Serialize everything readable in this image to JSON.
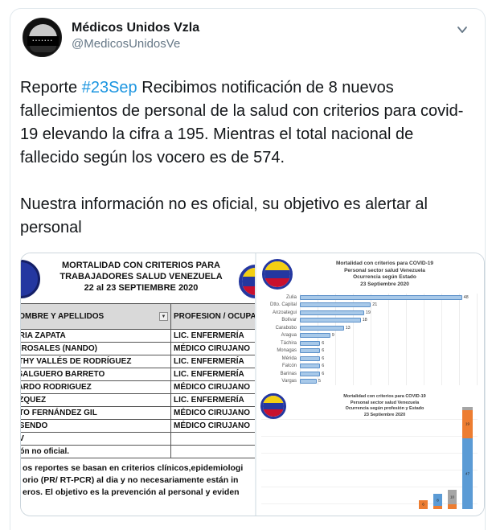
{
  "tweet": {
    "author": "Médicos Unidos Vzla",
    "handle": "@MedicosUnidosVe",
    "body_pre": "Reporte ",
    "hashtag": "#23Sep",
    "body_post": " Recibimos notificación de 8 nuevos fallecimientos de personal de la salud con criterios para covid-19 elevando la cifra a 195. Mientras el total nacional de fallecido según los vocero es de 574.",
    "body2": "Nuestra información no es oficial, su objetivo es alertar al personal"
  },
  "table_image": {
    "title_lines": [
      "MORTALIDAD CON CRITERIOS PARA",
      "TRABAJADORES SALUD VENEZUELA",
      "22 al 23 SEPTIEMBRE 2020"
    ],
    "columns": [
      "NOMBRE Y APELLIDOS",
      "PROFESION / OCUPACION"
    ],
    "rows": [
      [
        "ORIA ZAPATA",
        "LIC. ENFERMERÍA"
      ],
      [
        "O ROSALES (NANDO)",
        "MÉDICO CIRUJANO"
      ],
      [
        "ETHY VALLÉS DE RODRÍGUEZ",
        "LIC. ENFERMERÍA"
      ],
      [
        ". SALGUERO BARRETO",
        "LIC. ENFERMERÍA"
      ],
      [
        "JARDO RODRIGUEZ",
        "MÉDICO CIRUJANO"
      ],
      [
        "AZQUEZ",
        "LIC. ENFERMERÍA"
      ],
      [
        "RTO FERNÁNDEZ GIL",
        "MÉDICO CIRUJANO"
      ],
      [
        "OSENDO",
        "MÉDICO CIRUJANO"
      ],
      [
        "UV",
        ""
      ],
      [
        "ción no oficial.",
        ""
      ]
    ],
    "notes": [
      "os reportes se basan en criterios clínicos,epidemiologi",
      "orio (PR/ RT-PCR) al dia y no necesariamente están in",
      "eros. El objetivo es la prevención al personal y eviden"
    ]
  },
  "chart_data": [
    {
      "type": "bar",
      "orientation": "horizontal",
      "title_lines": [
        "Mortalidad con criterios para COVID-19",
        "Personal sector salud Venezuela",
        "Ocurrencia según Estado",
        "23 Septiembre 2020"
      ],
      "categories": [
        "Zulia",
        "Dtto. Capital",
        "Anzoategui",
        "Bolívar",
        "Carabobo",
        "Aragua",
        "Táchira",
        "Monagas",
        "Mérida",
        "Falcón",
        "Barinas",
        "Vargas"
      ],
      "values": [
        48,
        21,
        19,
        18,
        13,
        9,
        6,
        6,
        6,
        6,
        6,
        5
      ],
      "xlim": [
        0,
        50
      ],
      "bar_color": "#a8c9e9",
      "grid": true,
      "legend": false
    },
    {
      "type": "bar",
      "subtype": "stacked-column",
      "title_lines": [
        "Mortalidad con criterios para COVID-19",
        "Personal sector salud Venezuela",
        "Ocurrencia según profesión y Estado",
        "23 Septiembre 2020"
      ],
      "note": "chart cropped in screenshot; only right-most columns visible, values estimated",
      "series_colors": {
        "blue": "#5b9bd5",
        "orange": "#ed7d31",
        "gray": "#a5a5a5"
      },
      "columns": [
        {
          "segments": [
            {
              "series": "orange",
              "value": 6
            }
          ]
        },
        {
          "segments": [
            {
              "series": "orange",
              "value": 2
            },
            {
              "series": "blue",
              "value": 8
            }
          ]
        },
        {
          "segments": [
            {
              "series": "orange",
              "value": 3
            },
            {
              "series": "gray",
              "value": 10
            }
          ]
        },
        {
          "segments": [
            {
              "series": "blue",
              "value": 47
            },
            {
              "series": "orange",
              "value": 19
            },
            {
              "series": "gray",
              "value": 2
            }
          ]
        }
      ],
      "ylim": [
        0,
        70
      ],
      "grid": true,
      "legend": false
    }
  ],
  "colors": {
    "link": "#1b95e0",
    "text": "#14171a",
    "muted": "#657786",
    "card_border": "#e1e8ed"
  }
}
